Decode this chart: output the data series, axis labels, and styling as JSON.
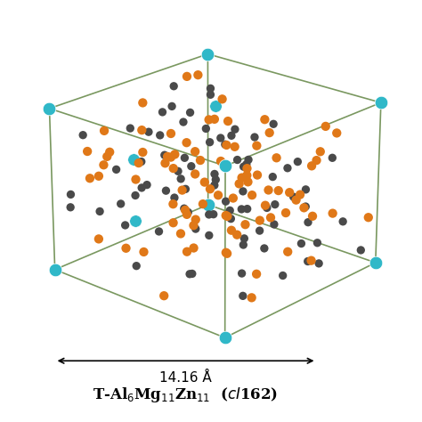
{
  "atom_colors": {
    "Mg": "#E07818",
    "AlZn": "#4A4A4A",
    "special": "#30B8C8"
  },
  "atom_sizes": {
    "Mg": 55,
    "AlZn": 45,
    "special": 110
  },
  "bg_color": "#ffffff",
  "cube_color": "#7A9860",
  "cube_linewidth": 1.2,
  "fig_width": 4.74,
  "fig_height": 4.74,
  "elev": 22,
  "azim": -48,
  "lattice_param": "14.16 Å",
  "n_mg": 90,
  "n_alzn": 95,
  "special_corners": [
    [
      0,
      0,
      0
    ],
    [
      1,
      0,
      0
    ],
    [
      0,
      1,
      0
    ],
    [
      1,
      1,
      0
    ],
    [
      0,
      0,
      1
    ],
    [
      1,
      0,
      1
    ],
    [
      0,
      1,
      1
    ],
    [
      1,
      1,
      1
    ]
  ],
  "special_interior": [
    [
      0.5,
      0.0,
      0.5
    ],
    [
      0.0,
      0.5,
      0.5
    ],
    [
      0.5,
      0.5,
      1.0
    ]
  ]
}
